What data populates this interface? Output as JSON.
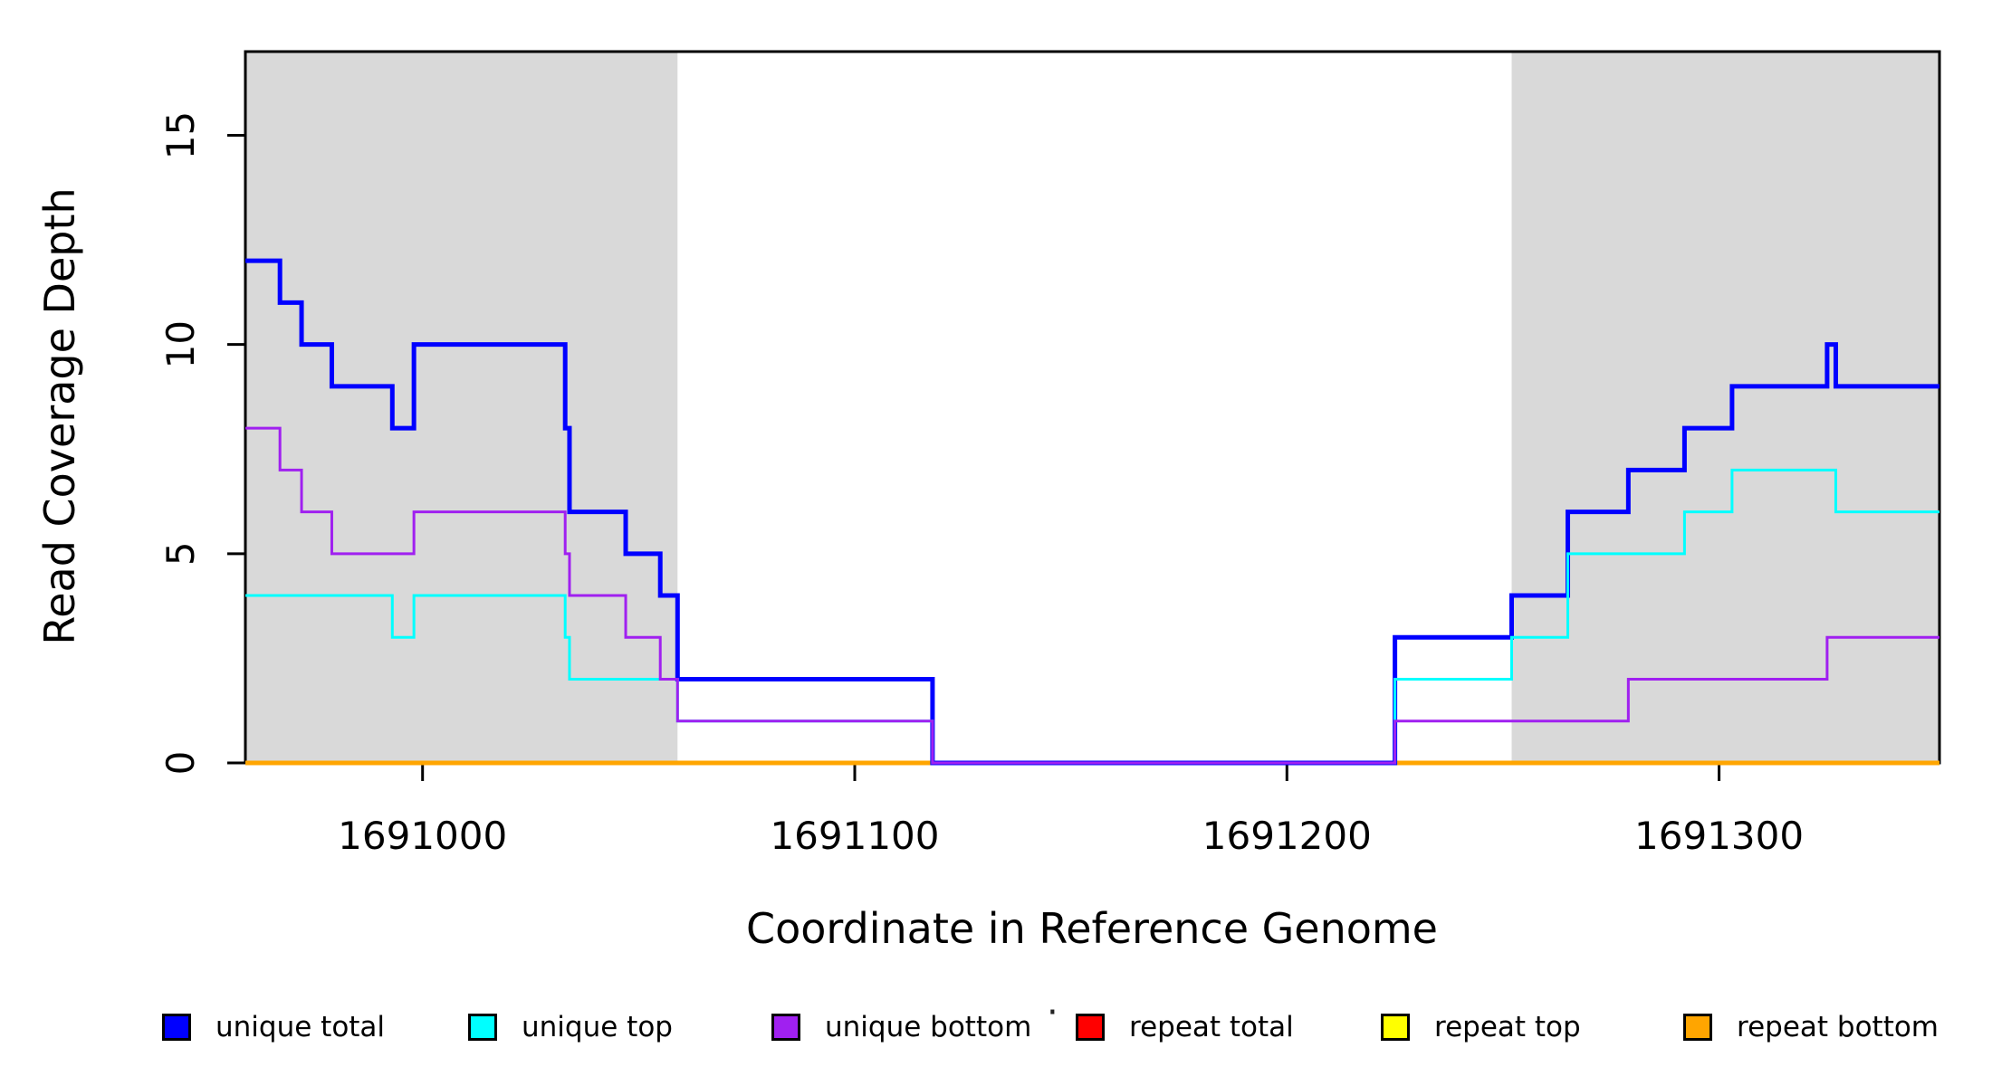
{
  "chart_data": {
    "type": "line",
    "subtype": "step",
    "title": "",
    "xlabel": "Coordinate in Reference Genome",
    "ylabel": "Read Coverage Depth",
    "xlim": [
      1690959,
      1691351
    ],
    "ylim": [
      0,
      17.0
    ],
    "xticks": [
      1691000,
      1691100,
      1691200,
      1691300
    ],
    "xtick_labels": [
      "1691000",
      "1691100",
      "1691200",
      "1691300"
    ],
    "yticks": [
      0,
      5,
      10,
      15
    ],
    "ytick_labels": [
      "0",
      "5",
      "10",
      "15"
    ],
    "grid": "off",
    "legend_position": "bottom",
    "axis_color": "#000000",
    "shade_color": "#D9D9D9",
    "shaded_regions": [
      {
        "x0": 1690959,
        "x1": 1691059
      },
      {
        "x0": 1691252,
        "x1": 1691351
      }
    ],
    "series": [
      {
        "name": "repeat total",
        "color": "#FF0000",
        "width": 3,
        "steps": [
          [
            1690959,
            0
          ],
          [
            1691351,
            0
          ]
        ]
      },
      {
        "name": "repeat top",
        "color": "#FFFF00",
        "width": 3,
        "steps": [
          [
            1690959,
            0
          ],
          [
            1691351,
            0
          ]
        ]
      },
      {
        "name": "repeat bottom",
        "color": "#FFA500",
        "width": 5,
        "steps": [
          [
            1690959,
            0
          ],
          [
            1691351,
            0
          ]
        ]
      },
      {
        "name": "unique total",
        "color": "#0000FF",
        "width": 5,
        "steps": [
          [
            1690959,
            12
          ],
          [
            1690967,
            11
          ],
          [
            1690972,
            10
          ],
          [
            1690979,
            9
          ],
          [
            1690993,
            8
          ],
          [
            1690998,
            10
          ],
          [
            1691033,
            8
          ],
          [
            1691034,
            6
          ],
          [
            1691047,
            5
          ],
          [
            1691055,
            4
          ],
          [
            1691059,
            2
          ],
          [
            1691118,
            0
          ],
          [
            1691225,
            3
          ],
          [
            1691252,
            4
          ],
          [
            1691265,
            6
          ],
          [
            1691279,
            7
          ],
          [
            1691292,
            8
          ],
          [
            1691303,
            9
          ],
          [
            1691325,
            10
          ],
          [
            1691327,
            9
          ],
          [
            1691351,
            9
          ]
        ]
      },
      {
        "name": "unique top",
        "color": "#00FFFF",
        "width": 3,
        "steps": [
          [
            1690959,
            4
          ],
          [
            1690993,
            3
          ],
          [
            1690998,
            4
          ],
          [
            1691033,
            3
          ],
          [
            1691034,
            2
          ],
          [
            1691059,
            1
          ],
          [
            1691118,
            0
          ],
          [
            1691225,
            2
          ],
          [
            1691252,
            3
          ],
          [
            1691265,
            5
          ],
          [
            1691292,
            6
          ],
          [
            1691303,
            7
          ],
          [
            1691327,
            6
          ],
          [
            1691351,
            6
          ]
        ]
      },
      {
        "name": "unique bottom",
        "color": "#A020F0",
        "width": 3,
        "steps": [
          [
            1690959,
            8
          ],
          [
            1690967,
            7
          ],
          [
            1690972,
            6
          ],
          [
            1690979,
            5
          ],
          [
            1690998,
            6
          ],
          [
            1691033,
            5
          ],
          [
            1691034,
            4
          ],
          [
            1691047,
            3
          ],
          [
            1691055,
            2
          ],
          [
            1691059,
            1
          ],
          [
            1691118,
            0
          ],
          [
            1691225,
            1
          ],
          [
            1691279,
            2
          ],
          [
            1691325,
            3
          ],
          [
            1691351,
            3
          ]
        ]
      }
    ]
  },
  "legend": {
    "stray_dot": "·",
    "items": [
      {
        "label": "unique total",
        "color": "#0000FF"
      },
      {
        "label": "unique top",
        "color": "#00FFFF"
      },
      {
        "label": "unique bottom",
        "color": "#A020F0"
      },
      {
        "label": "repeat total",
        "color": "#FF0000"
      },
      {
        "label": "repeat top",
        "color": "#FFFF00"
      },
      {
        "label": "repeat bottom",
        "color": "#FFA500"
      }
    ]
  }
}
